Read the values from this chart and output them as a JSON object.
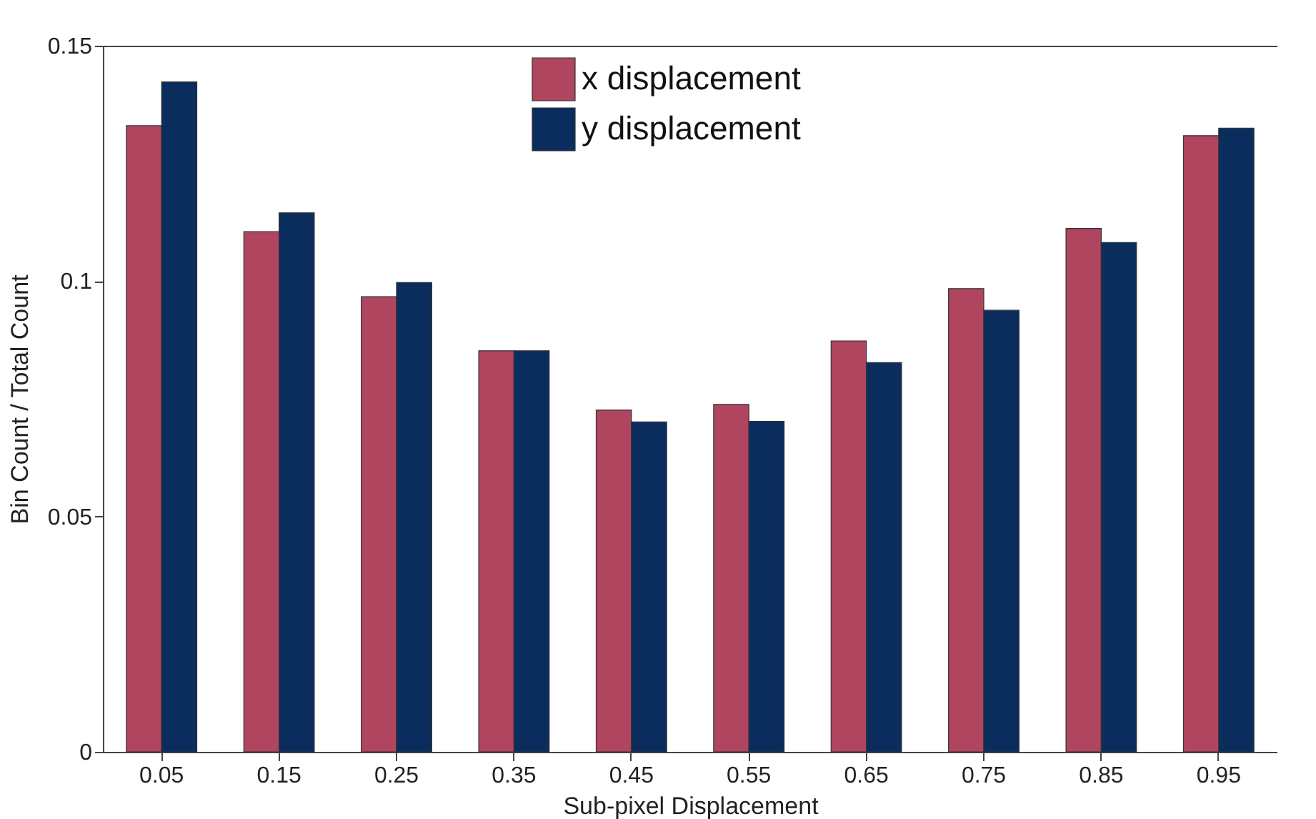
{
  "chart_data": {
    "type": "bar",
    "xlabel": "Sub-pixel Displacement",
    "ylabel": "Bin Count / Total Count",
    "categories": [
      "0.05",
      "0.15",
      "0.25",
      "0.35",
      "0.45",
      "0.55",
      "0.65",
      "0.75",
      "0.85",
      "0.95"
    ],
    "series": [
      {
        "name": "x displacement",
        "color": "#b0455f",
        "values": [
          0.133,
          0.1105,
          0.0967,
          0.0852,
          0.0726,
          0.0738,
          0.0873,
          0.0984,
          0.1112,
          0.1309
        ]
      },
      {
        "name": "y displacement",
        "color": "#0a2d5e",
        "values": [
          0.1423,
          0.1145,
          0.0997,
          0.0852,
          0.0701,
          0.0702,
          0.0827,
          0.0938,
          0.1082,
          0.1325
        ]
      }
    ],
    "ylim": [
      0,
      0.15
    ],
    "yticks": [
      0,
      0.05,
      0.1,
      0.15
    ],
    "legend": "top",
    "grid": false
  }
}
